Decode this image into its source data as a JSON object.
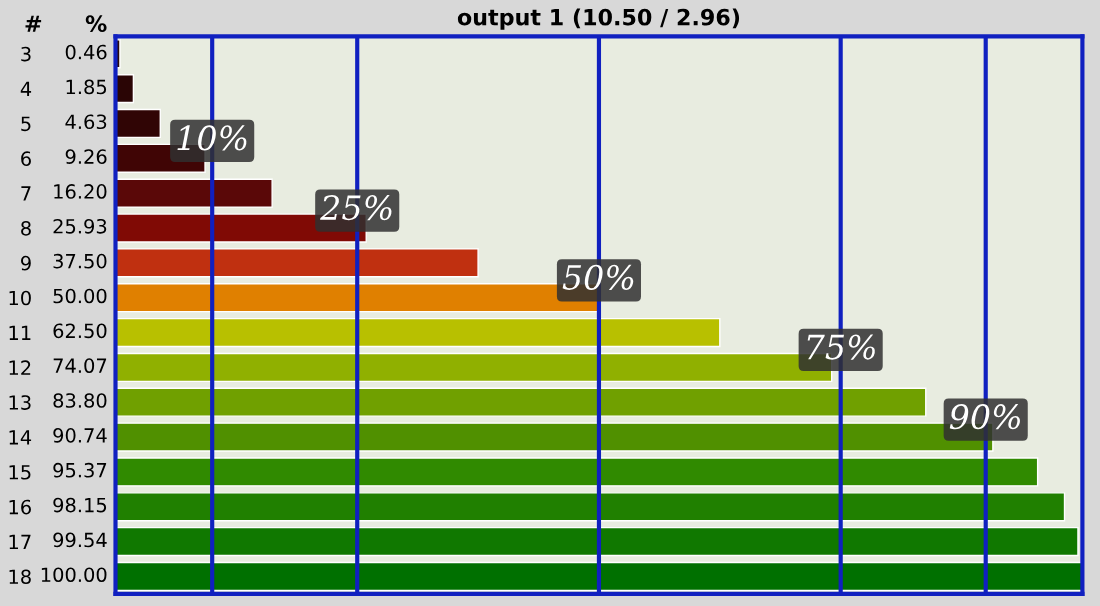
{
  "chart_data": {
    "type": "bar",
    "orientation": "horizontal",
    "title": "output 1 (10.50 / 2.96)",
    "ylabel": "#",
    "annotations": [
      "%"
    ],
    "categories": [
      "3",
      "4",
      "5",
      "6",
      "7",
      "8",
      "9",
      "10",
      "11",
      "12",
      "13",
      "14",
      "15",
      "16",
      "17",
      "18"
    ],
    "values": [
      0.46,
      1.85,
      4.63,
      9.26,
      16.2,
      25.93,
      37.5,
      50,
      62.5,
      74.07,
      83.8,
      90.74,
      95.37,
      98.15,
      99.54,
      100
    ],
    "value_labels": [
      "0.46",
      "1.85",
      "4.63",
      "9.26",
      "16.20",
      "25.93",
      "37.50",
      "50.00",
      "62.50",
      "74.07",
      "83.80",
      "90.74",
      "95.37",
      "98.15",
      "99.54",
      "100.00"
    ],
    "colors": [
      "#2a0a0a",
      "#2a0505",
      "#300505",
      "#400505",
      "#5a0808",
      "#800a05",
      "#c03010",
      "#e08000",
      "#b8c000",
      "#90b000",
      "#70a000",
      "#509000",
      "#308a00",
      "#208000",
      "#107800",
      "#007000"
    ],
    "xlim": [
      0,
      100
    ],
    "tick_labels": "y",
    "grid": false,
    "ref_lines": [
      {
        "axis": "x",
        "value": 10,
        "label": "10%",
        "color": "#1020c0"
      },
      {
        "axis": "x",
        "value": 25,
        "label": "25%",
        "color": "#1020c0"
      },
      {
        "axis": "x",
        "value": 50,
        "label": "50%",
        "color": "#1020c0"
      },
      {
        "axis": "x",
        "value": 75,
        "label": "75%",
        "color": "#1020c0"
      },
      {
        "axis": "x",
        "value": 90,
        "label": "90%",
        "color": "#1020c0"
      }
    ]
  }
}
